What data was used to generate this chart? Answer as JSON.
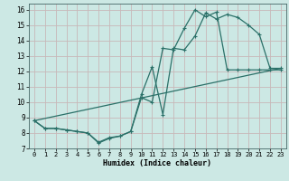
{
  "title": "",
  "xlabel": "Humidex (Indice chaleur)",
  "bg_color": "#cce8e4",
  "grid_color": "#c8b8b8",
  "line_color": "#2a7068",
  "xlim": [
    -0.5,
    23.5
  ],
  "ylim": [
    7,
    16.4
  ],
  "xticks": [
    0,
    1,
    2,
    3,
    4,
    5,
    6,
    7,
    8,
    9,
    10,
    11,
    12,
    13,
    14,
    15,
    16,
    17,
    18,
    19,
    20,
    21,
    22,
    23
  ],
  "yticks": [
    7,
    8,
    9,
    10,
    11,
    12,
    13,
    14,
    15,
    16
  ],
  "line1_x": [
    0,
    1,
    2,
    3,
    4,
    5,
    6,
    7,
    8,
    9,
    10,
    11,
    12,
    13,
    14,
    15,
    16,
    17,
    18,
    19,
    20,
    21,
    22,
    23
  ],
  "line1_y": [
    8.8,
    8.3,
    8.3,
    8.2,
    8.1,
    8.0,
    7.4,
    7.7,
    7.8,
    8.1,
    10.5,
    12.3,
    9.2,
    13.5,
    13.4,
    14.3,
    15.8,
    15.4,
    15.7,
    15.5,
    15.0,
    14.4,
    12.2,
    12.2
  ],
  "line2_x": [
    0,
    1,
    2,
    3,
    4,
    5,
    6,
    7,
    8,
    9,
    10,
    11,
    12,
    13,
    14,
    15,
    16,
    17,
    18,
    19,
    20,
    21,
    22,
    23
  ],
  "line2_y": [
    8.8,
    8.3,
    8.3,
    8.2,
    8.1,
    8.0,
    7.35,
    7.65,
    7.8,
    8.1,
    10.3,
    10.0,
    13.5,
    13.4,
    14.8,
    16.0,
    15.55,
    15.85,
    12.1,
    12.1,
    12.1,
    12.1,
    12.1,
    12.1
  ],
  "line3_x": [
    0,
    23
  ],
  "line3_y": [
    8.8,
    12.2
  ]
}
